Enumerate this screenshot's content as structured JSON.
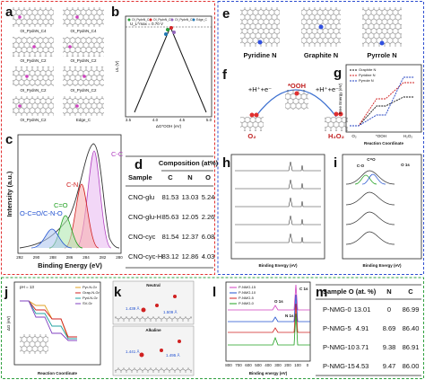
{
  "panel_a": {
    "letter": "a",
    "labels": [
      "OI_PydnN_C4",
      "OI_PydnN_C4",
      "OI_PydnN_C2",
      "OI_PydnN_C2",
      "OI_PydnN_C2",
      "OI_PydnN_C2",
      "OI_PydnN_C2",
      "Edge_C"
    ]
  },
  "panel_b": {
    "letter": "b",
    "legend": [
      "OI_PydnN_C4",
      "OI_PydnN_C2",
      "OI_PydnN_C2",
      "Edge_C"
    ],
    "annotation": "U_L^max = 0.70 V",
    "y_label": "UL (V)",
    "x_label": "ΔG*OOH (eV)",
    "xticks": [
      "3.5",
      "4.0",
      "4.5",
      "5.0"
    ]
  },
  "panel_c": {
    "letter": "c",
    "peaks": [
      "C-C",
      "C-N",
      "C=O",
      "O-C=O/C-N-O"
    ],
    "y_label": "Intensity (a.u.)",
    "x_label": "Binding Energy (eV)",
    "xticks": [
      "292",
      "290",
      "288",
      "286",
      "284",
      "282",
      "280"
    ]
  },
  "panel_d": {
    "letter": "d",
    "header": [
      "Sample",
      "Composition (at%)"
    ],
    "columns": [
      "C",
      "N",
      "O"
    ],
    "rows": [
      [
        "CNO-glu",
        "81.53",
        "13.03",
        "5.24"
      ],
      [
        "CNO-glu-H",
        "85.63",
        "12.05",
        "2.26"
      ],
      [
        "CNO-cyc",
        "81.54",
        "12.37",
        "6.08"
      ],
      [
        "CNO-cyc-H",
        "83.12",
        "12.86",
        "4.03"
      ]
    ]
  },
  "panel_e": {
    "letter": "e",
    "labels": [
      "Pyridine N",
      "Graphite N",
      "Pyrrole N"
    ]
  },
  "panel_f": {
    "letter": "f",
    "steps": [
      "+H⁺+e⁻",
      "+H⁺+e⁻"
    ],
    "species": [
      "*OOH",
      "O₂",
      "H₂O₂"
    ]
  },
  "panel_g": {
    "letter": "g",
    "legend": [
      "Graphite N",
      "Pyridine N",
      "Pyrrole N"
    ],
    "y_label": "Free Energy (eV)",
    "x_label": "Reaction Coordinate",
    "categories": [
      "O₂",
      "*OOH",
      "H₂O₂"
    ]
  },
  "panel_h": {
    "letter": "h",
    "x_label": "Binding Energy (eV)"
  },
  "panel_i": {
    "letter": "i",
    "peaks": [
      "C-O",
      "C=O",
      "O 1s"
    ],
    "x_label": "Binding Energy (eV)"
  },
  "panel_j": {
    "letter": "j",
    "annotation": "pH = 13",
    "legend": [
      "Pyr-N-Gr",
      "Grap-N-Gr",
      "Pyd-N-Gr",
      "SV-Gr"
    ],
    "y_label": "ΔG (eV)",
    "x_label": "Reaction Coordinate"
  },
  "panel_k": {
    "letter": "k",
    "conditions": [
      "Neutral",
      "Alkaline"
    ],
    "bonds": [
      "1.439 Å",
      "1.509 Å",
      "1.441 Å",
      "1.495 Å"
    ]
  },
  "panel_l": {
    "letter": "l",
    "legend": [
      "P-NMG-15",
      "P-NMG-10",
      "P-NMG-5",
      "P-NMG-0"
    ],
    "peaks": [
      "C 1s",
      "O 1s",
      "N 1s"
    ],
    "x_label": "Binding energy (eV)",
    "xticks": [
      "800",
      "700",
      "600",
      "500",
      "400",
      "300",
      "200",
      "100",
      "0"
    ]
  },
  "panel_m": {
    "letter": "m",
    "header": [
      "Sample",
      "O (at. %)",
      "N",
      "C"
    ],
    "rows": [
      [
        "P-NMG-0",
        "13.01",
        "0",
        "86.99"
      ],
      [
        "P-NMG-5",
        "4.91",
        "8.69",
        "86.40"
      ],
      [
        "P-NMG-10",
        "3.71",
        "9.38",
        "86.91"
      ],
      [
        "P-NMG-15",
        "4.53",
        "9.47",
        "86.00"
      ]
    ]
  }
}
